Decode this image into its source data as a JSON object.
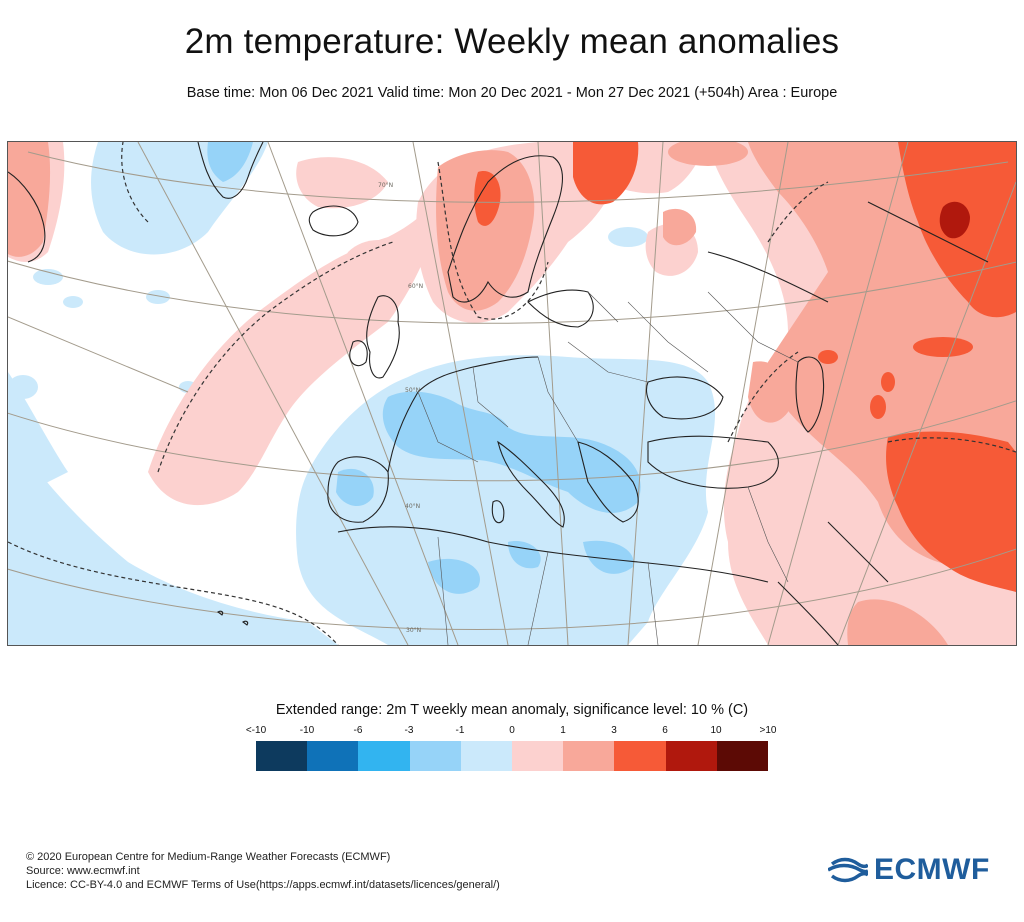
{
  "header": {
    "title": "2m temperature: Weekly mean anomalies",
    "subtitle": "Base time: Mon 06 Dec 2021 Valid time: Mon 20 Dec 2021 - Mon 27 Dec 2021 (+504h) Area : Europe"
  },
  "map": {
    "area": "Europe",
    "parallel_labels": [
      "70°N",
      "60°N",
      "50°N",
      "40°N",
      "30°N"
    ]
  },
  "legend": {
    "title": "Extended range: 2m T weekly mean anomaly, significance level: 10 % (C)",
    "labels": [
      "<-10",
      "-10",
      "-6",
      "-3",
      "-1",
      "0",
      "1",
      "3",
      "6",
      "10",
      ">10"
    ],
    "colors": [
      "#0d3a5e",
      "#0f72b8",
      "#32b4f0",
      "#96d3f8",
      "#cbe9fb",
      "#fcd1cf",
      "#f8a89a",
      "#f65a37",
      "#b0180d",
      "#5c0a05"
    ]
  },
  "footer": {
    "copyright": "© 2020 European Centre for Medium-Range Weather Forecasts (ECMWF)",
    "source": "Source: www.ecmwf.int",
    "licence": "Licence: CC-BY-4.0 and ECMWF Terms of Use(https://apps.ecmwf.int/datasets/licences/general/)"
  },
  "logo": {
    "text": "ECMWF",
    "color": "#1f5d9c"
  }
}
